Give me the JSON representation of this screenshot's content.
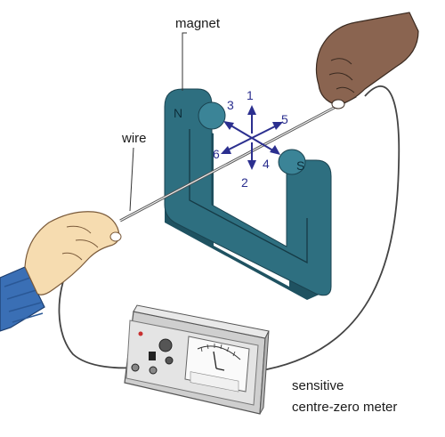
{
  "labels": {
    "magnet": "magnet",
    "wire": "wire",
    "meter_line1": "sensitive",
    "meter_line2": "centre-zero meter"
  },
  "poles": {
    "north": "N",
    "south": "S"
  },
  "directions": [
    "1",
    "2",
    "3",
    "4",
    "5",
    "6"
  ],
  "colors": {
    "magnet": "#2e6f80",
    "magnet_dark": "#1f5261",
    "arrows": "#2b2f8f",
    "skin_light": "#f6dcb0",
    "skin_dark": "#8a6450",
    "sleeve": "#3a6fb5",
    "meter_body": "#e4e4e4",
    "wire": "#444444"
  }
}
